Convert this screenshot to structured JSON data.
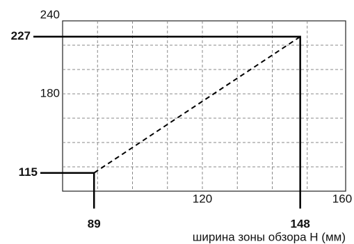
{
  "chart_data": {
    "type": "line",
    "x_label": "ширина зоны обзора H (мм)",
    "x": [
      89,
      148
    ],
    "values": [
      115,
      227
    ],
    "color": "#000000",
    "xlim": [
      80,
      161
    ],
    "ylim": [
      100,
      240
    ],
    "xticks": [
      120,
      160
    ],
    "yticks": [
      180,
      240
    ],
    "grid": true
  }
}
